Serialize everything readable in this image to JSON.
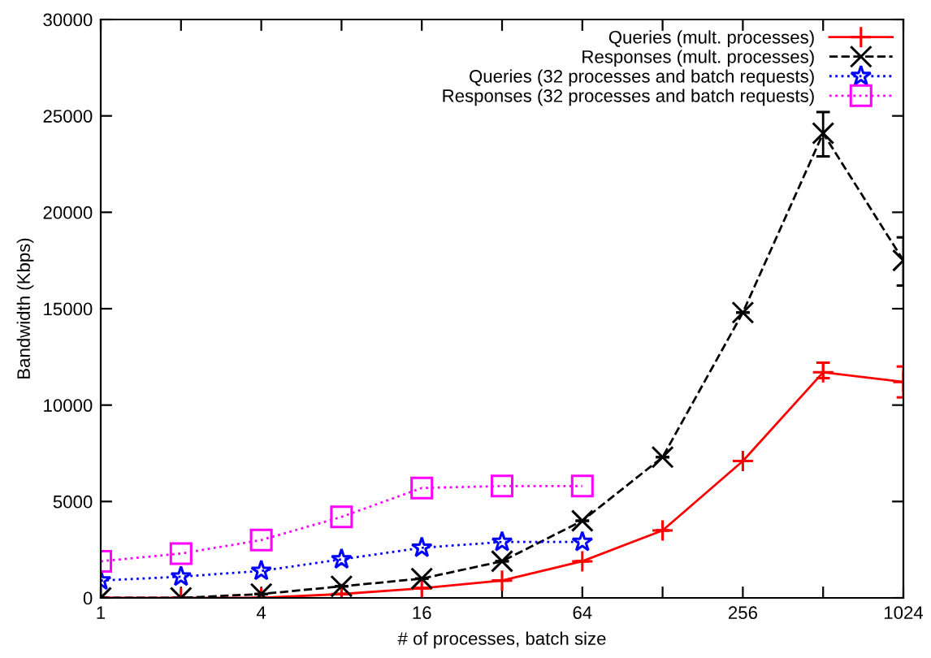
{
  "chart_data": {
    "type": "line",
    "xlabel": "# of processes, batch size",
    "ylabel": "Bandwidth (Kbps)",
    "log": "x",
    "xlim": [
      1,
      1024
    ],
    "xticks": [
      1,
      {
        "value": 2,
        "label": null
      },
      4,
      {
        "value": 8,
        "label": null
      },
      16,
      {
        "value": 32,
        "label": null
      },
      64,
      {
        "value": 128,
        "label": null
      },
      256,
      {
        "value": 512,
        "label": null
      },
      1024
    ],
    "ylim": [
      0,
      30000
    ],
    "yticks": [
      0,
      5000,
      10000,
      15000,
      20000,
      25000,
      30000
    ],
    "grid": false,
    "legend": "top right",
    "series": [
      {
        "name": "Queries (mult. processes)",
        "color": "#ff0000",
        "marker": "cross",
        "line_style": "solid",
        "x": [
          1,
          2,
          4,
          8,
          16,
          32,
          64,
          128,
          256,
          512,
          1024
        ],
        "values": [
          0,
          0,
          0,
          200,
          500,
          900,
          1900,
          3500,
          7100,
          11700,
          11200
        ],
        "errors": [
          null,
          null,
          null,
          null,
          null,
          null,
          null,
          null,
          null,
          [
            11400,
            12200
          ],
          [
            10400,
            12000
          ]
        ]
      },
      {
        "name": "Responses (mult. processes)",
        "color": "#000000",
        "marker": "x",
        "line_style": "dashed",
        "x": [
          1,
          2,
          4,
          8,
          16,
          32,
          64,
          128,
          256,
          512,
          1024
        ],
        "values": [
          0,
          0,
          200,
          600,
          1000,
          1900,
          4000,
          7300,
          14800,
          24100,
          17500
        ],
        "errors": [
          null,
          null,
          null,
          null,
          null,
          null,
          null,
          null,
          null,
          [
            22900,
            25200
          ],
          [
            16200,
            18700
          ]
        ]
      },
      {
        "name": "Queries (32 processes and batch requests)",
        "color": "#0000ff",
        "marker": "star",
        "line_style": "dotted",
        "x": [
          1,
          2,
          4,
          8,
          16,
          32,
          64
        ],
        "values": [
          900,
          1100,
          1400,
          2000,
          2600,
          2900,
          2900
        ]
      },
      {
        "name": "Responses (32 processes and batch requests)",
        "color": "#ff00ff",
        "marker": "square",
        "line_style": "dotted",
        "x": [
          1,
          2,
          4,
          8,
          16,
          32,
          64
        ],
        "values": [
          1900,
          2300,
          3000,
          4200,
          5700,
          5800,
          5800
        ]
      }
    ]
  }
}
